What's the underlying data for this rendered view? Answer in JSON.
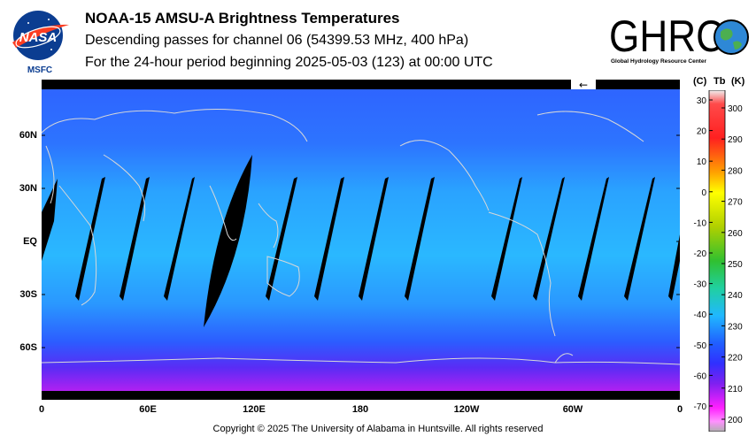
{
  "header": {
    "title": "NOAA-15 AMSU-A Brightness Temperatures",
    "subtitle": "Descending passes for channel 06 (54399.53 MHz, 400 hPa)",
    "period": "For the 24-hour period beginning 2025-05-03 (123) at 00:00 UTC"
  },
  "logos": {
    "nasa": {
      "text": "NASA",
      "caption": "MSFC"
    },
    "ghrc": {
      "text": "GHRC",
      "caption": "Global Hydrology Resource Center"
    }
  },
  "map": {
    "lat_labels": [
      "60N",
      "30N",
      "EQ",
      "30S",
      "60S"
    ],
    "lon_labels": [
      "0",
      "60E",
      "120E",
      "180",
      "120W",
      "60W",
      "0"
    ],
    "lat_values": [
      60,
      30,
      0,
      -30,
      -60
    ],
    "lon_values": [
      0,
      60,
      120,
      180,
      240,
      300,
      360
    ],
    "arrow_glyph": "←"
  },
  "colorbar": {
    "unit_c": "(C)",
    "unit_tb": "Tb",
    "unit_k": "(K)",
    "celsius_ticks": [
      "30",
      "20",
      "10",
      "0",
      "-10",
      "-20",
      "-30",
      "-40",
      "-50",
      "-60",
      "-70"
    ],
    "kelvin_ticks": [
      "300",
      "290",
      "280",
      "270",
      "260",
      "250",
      "240",
      "230",
      "220",
      "210",
      "200"
    ]
  },
  "footer": {
    "copyright": "Copyright © 2025 The University of Alabama in Huntsville.  All rights reserved"
  }
}
